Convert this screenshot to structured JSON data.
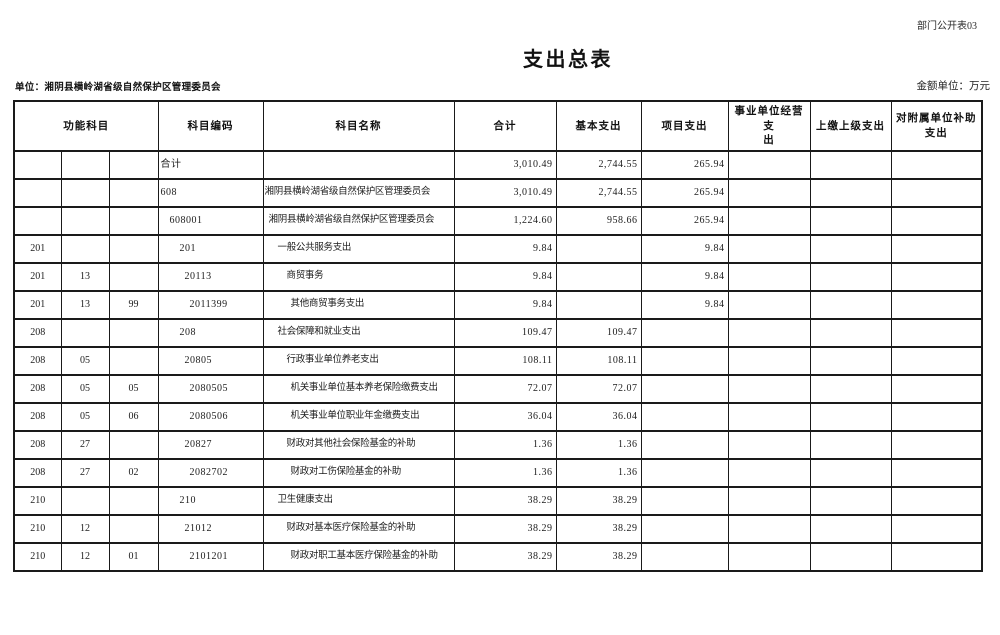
{
  "doc_code": "部门公开表03",
  "title": "支出总表",
  "unit_label": "单位：湘阴县横岭湖省级自然保护区管理委员会",
  "amount_unit_label": "金额单位：万元",
  "colors": {
    "background": "#ffffff",
    "border": "#1a1a1a",
    "text": "#1c1c1c"
  },
  "table": {
    "header": {
      "func": "功能科目",
      "code": "科目编码",
      "name": "科目名称",
      "total": "合计",
      "basic": "基本支出",
      "project": "项目支出",
      "operating": "事业单位经营支\n出",
      "upper": "上缴上级支出",
      "subsidy": "对附属单位补助\n支出"
    },
    "rows": [
      {
        "f1": "",
        "f2": "",
        "f3": "",
        "code": "合计",
        "name": "",
        "indent": 0,
        "total": "3,010.49",
        "basic": "2,744.55",
        "project": "265.94",
        "operating": "",
        "upper": "",
        "subsidy": ""
      },
      {
        "f1": "",
        "f2": "",
        "f3": "",
        "code": "608",
        "name": "湘阴县横岭湖省级自然保护区管理委员会",
        "indent": 0,
        "total": "3,010.49",
        "basic": "2,744.55",
        "project": "265.94",
        "operating": "",
        "upper": "",
        "subsidy": ""
      },
      {
        "f1": "",
        "f2": "",
        "f3": "",
        "code": "608001",
        "name": "湘阴县横岭湖省级自然保护区管理委员会",
        "indent": 1,
        "total": "1,224.60",
        "basic": "958.66",
        "project": "265.94",
        "operating": "",
        "upper": "",
        "subsidy": ""
      },
      {
        "f1": "201",
        "f2": "",
        "f3": "",
        "code": "201",
        "name": "一般公共服务支出",
        "indent": 2,
        "total": "9.84",
        "basic": "",
        "project": "9.84",
        "operating": "",
        "upper": "",
        "subsidy": ""
      },
      {
        "f1": "201",
        "f2": "13",
        "f3": "",
        "code": "20113",
        "name": "商贸事务",
        "indent": 3,
        "total": "9.84",
        "basic": "",
        "project": "9.84",
        "operating": "",
        "upper": "",
        "subsidy": ""
      },
      {
        "f1": "201",
        "f2": "13",
        "f3": "99",
        "code": "2011399",
        "name": "其他商贸事务支出",
        "indent": 4,
        "total": "9.84",
        "basic": "",
        "project": "9.84",
        "operating": "",
        "upper": "",
        "subsidy": ""
      },
      {
        "f1": "208",
        "f2": "",
        "f3": "",
        "code": "208",
        "name": "社会保障和就业支出",
        "indent": 2,
        "total": "109.47",
        "basic": "109.47",
        "project": "",
        "operating": "",
        "upper": "",
        "subsidy": ""
      },
      {
        "f1": "208",
        "f2": "05",
        "f3": "",
        "code": "20805",
        "name": "行政事业单位养老支出",
        "indent": 3,
        "total": "108.11",
        "basic": "108.11",
        "project": "",
        "operating": "",
        "upper": "",
        "subsidy": ""
      },
      {
        "f1": "208",
        "f2": "05",
        "f3": "05",
        "code": "2080505",
        "name": "机关事业单位基本养老保险缴费支出",
        "indent": 4,
        "total": "72.07",
        "basic": "72.07",
        "project": "",
        "operating": "",
        "upper": "",
        "subsidy": ""
      },
      {
        "f1": "208",
        "f2": "05",
        "f3": "06",
        "code": "2080506",
        "name": "机关事业单位职业年金缴费支出",
        "indent": 4,
        "total": "36.04",
        "basic": "36.04",
        "project": "",
        "operating": "",
        "upper": "",
        "subsidy": ""
      },
      {
        "f1": "208",
        "f2": "27",
        "f3": "",
        "code": "20827",
        "name": "财政对其他社会保险基金的补助",
        "indent": 3,
        "total": "1.36",
        "basic": "1.36",
        "project": "",
        "operating": "",
        "upper": "",
        "subsidy": ""
      },
      {
        "f1": "208",
        "f2": "27",
        "f3": "02",
        "code": "2082702",
        "name": "财政对工伤保险基金的补助",
        "indent": 4,
        "total": "1.36",
        "basic": "1.36",
        "project": "",
        "operating": "",
        "upper": "",
        "subsidy": ""
      },
      {
        "f1": "210",
        "f2": "",
        "f3": "",
        "code": "210",
        "name": "卫生健康支出",
        "indent": 2,
        "total": "38.29",
        "basic": "38.29",
        "project": "",
        "operating": "",
        "upper": "",
        "subsidy": ""
      },
      {
        "f1": "210",
        "f2": "12",
        "f3": "",
        "code": "21012",
        "name": "财政对基本医疗保险基金的补助",
        "indent": 3,
        "total": "38.29",
        "basic": "38.29",
        "project": "",
        "operating": "",
        "upper": "",
        "subsidy": ""
      },
      {
        "f1": "210",
        "f2": "12",
        "f3": "01",
        "code": "2101201",
        "name": "财政对职工基本医疗保险基金的补助",
        "indent": 4,
        "total": "38.29",
        "basic": "38.29",
        "project": "",
        "operating": "",
        "upper": "",
        "subsidy": ""
      }
    ]
  }
}
